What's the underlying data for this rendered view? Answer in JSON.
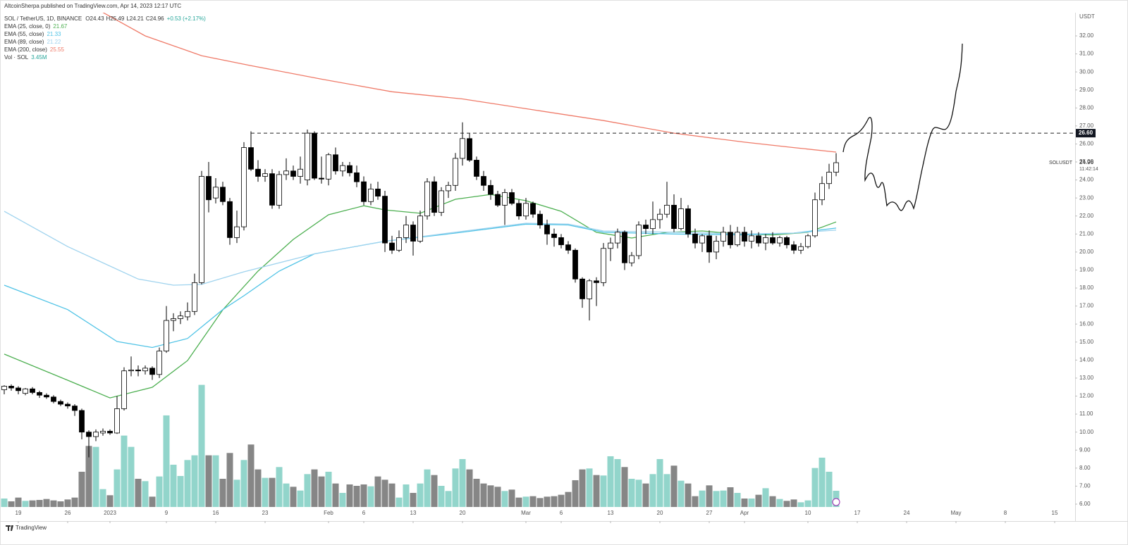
{
  "header": {
    "publisher": "AltcoinSherpa published on TradingView.com, Apr 14, 2023 12:17 UTC"
  },
  "chart_data": {
    "type": "candlestick",
    "symbol": "SOL / TetherUS, 1D, BINANCE",
    "ohlc_prefixes": [
      "O",
      "H",
      "L",
      "C"
    ],
    "change_label": "+0.53 (+2.17%)",
    "candles": [
      [
        12.35,
        12.6,
        12.1,
        12.55
      ],
      [
        12.55,
        12.65,
        12.3,
        12.45
      ],
      [
        12.45,
        12.55,
        12.1,
        12.3
      ],
      [
        12.15,
        12.45,
        12.05,
        12.4
      ],
      [
        12.4,
        12.5,
        12.1,
        12.2
      ],
      [
        12.2,
        12.3,
        11.9,
        12.05
      ],
      [
        12.05,
        12.15,
        11.85,
        11.95
      ],
      [
        11.95,
        12.05,
        11.6,
        11.7
      ],
      [
        11.7,
        11.8,
        11.45,
        11.55
      ],
      [
        11.55,
        11.65,
        11.3,
        11.45
      ],
      [
        11.45,
        11.55,
        10.9,
        11.2
      ],
      [
        11.2,
        11.3,
        9.6,
        10.0
      ],
      [
        10.0,
        10.1,
        8.6,
        9.75
      ],
      [
        9.75,
        10.15,
        9.5,
        10.0
      ],
      [
        9.95,
        10.2,
        9.8,
        10.05
      ],
      [
        10.05,
        10.15,
        9.85,
        9.95
      ],
      [
        9.95,
        12.0,
        9.9,
        11.3
      ],
      [
        11.3,
        13.6,
        11.2,
        13.4
      ],
      [
        13.4,
        14.2,
        13.1,
        13.45
      ],
      [
        13.45,
        13.7,
        13.1,
        13.4
      ],
      [
        13.4,
        13.7,
        13.2,
        13.55
      ],
      [
        13.55,
        13.65,
        12.9,
        13.2
      ],
      [
        13.2,
        14.7,
        13.0,
        14.5
      ],
      [
        14.5,
        17.0,
        14.4,
        16.2
      ],
      [
        16.2,
        16.6,
        15.6,
        16.3
      ],
      [
        16.3,
        16.7,
        16.0,
        16.45
      ],
      [
        16.4,
        17.2,
        16.2,
        16.7
      ],
      [
        16.7,
        18.8,
        16.5,
        18.3
      ],
      [
        18.3,
        24.5,
        18.2,
        24.2
      ],
      [
        24.2,
        25.0,
        22.2,
        22.9
      ],
      [
        23.0,
        24.1,
        22.7,
        23.6
      ],
      [
        23.6,
        23.9,
        22.6,
        22.8
      ],
      [
        22.8,
        23.0,
        20.4,
        20.8
      ],
      [
        20.8,
        22.3,
        20.5,
        21.4
      ],
      [
        21.4,
        26.1,
        21.2,
        25.8
      ],
      [
        25.8,
        26.7,
        24.5,
        24.6
      ],
      [
        24.6,
        25.1,
        23.9,
        24.2
      ],
      [
        24.2,
        24.6,
        23.9,
        24.35
      ],
      [
        24.35,
        24.6,
        22.4,
        22.6
      ],
      [
        22.6,
        24.5,
        22.4,
        24.3
      ],
      [
        24.3,
        25.2,
        24.0,
        24.5
      ],
      [
        24.5,
        24.8,
        24.0,
        24.2
      ],
      [
        24.2,
        25.3,
        23.8,
        24.6
      ],
      [
        24.0,
        26.8,
        23.7,
        26.6
      ],
      [
        26.6,
        26.7,
        24.0,
        24.1
      ],
      [
        24.1,
        25.3,
        23.8,
        24.05
      ],
      [
        24.05,
        25.5,
        23.7,
        25.4
      ],
      [
        25.4,
        25.8,
        24.3,
        24.5
      ],
      [
        24.5,
        25.0,
        24.2,
        24.8
      ],
      [
        24.8,
        25.0,
        24.2,
        24.4
      ],
      [
        24.4,
        24.8,
        23.6,
        23.9
      ],
      [
        23.9,
        24.2,
        22.6,
        22.8
      ],
      [
        22.8,
        23.8,
        22.6,
        23.5
      ],
      [
        23.5,
        23.9,
        22.9,
        23.1
      ],
      [
        23.1,
        23.4,
        20.0,
        20.5
      ],
      [
        20.5,
        20.9,
        19.9,
        20.1
      ],
      [
        20.1,
        21.2,
        20.0,
        20.8
      ],
      [
        20.8,
        22.0,
        20.5,
        21.5
      ],
      [
        21.5,
        21.7,
        19.8,
        20.6
      ],
      [
        20.6,
        22.3,
        20.5,
        22.0
      ],
      [
        22.0,
        24.1,
        21.8,
        23.9
      ],
      [
        23.9,
        24.2,
        22.0,
        22.2
      ],
      [
        22.2,
        23.6,
        22.0,
        23.4
      ],
      [
        23.4,
        23.9,
        23.0,
        23.7
      ],
      [
        23.7,
        25.5,
        23.4,
        25.2
      ],
      [
        25.2,
        27.2,
        24.8,
        26.3
      ],
      [
        26.3,
        26.6,
        25.0,
        25.1
      ],
      [
        25.1,
        25.3,
        24.0,
        24.2
      ],
      [
        24.2,
        24.5,
        23.4,
        23.7
      ],
      [
        23.7,
        24.0,
        22.9,
        23.2
      ],
      [
        23.2,
        23.4,
        22.5,
        22.6
      ],
      [
        22.6,
        23.5,
        21.5,
        23.3
      ],
      [
        23.3,
        23.5,
        22.6,
        22.7
      ],
      [
        22.7,
        22.9,
        21.8,
        22.0
      ],
      [
        22.0,
        23.0,
        21.8,
        22.7
      ],
      [
        22.7,
        22.8,
        21.9,
        22.1
      ],
      [
        22.1,
        22.3,
        21.3,
        21.5
      ],
      [
        21.5,
        21.8,
        20.4,
        21.0
      ],
      [
        21.0,
        21.3,
        20.3,
        20.8
      ],
      [
        20.8,
        21.0,
        20.2,
        20.4
      ],
      [
        20.4,
        20.6,
        19.9,
        20.1
      ],
      [
        20.1,
        20.2,
        18.3,
        18.5
      ],
      [
        18.5,
        18.6,
        16.9,
        17.4
      ],
      [
        17.4,
        18.5,
        16.2,
        18.4
      ],
      [
        18.4,
        18.6,
        17.0,
        18.3
      ],
      [
        18.3,
        20.5,
        18.1,
        20.2
      ],
      [
        20.2,
        20.8,
        19.5,
        20.5
      ],
      [
        20.5,
        21.3,
        20.2,
        21.1
      ],
      [
        21.1,
        21.2,
        19.0,
        19.4
      ],
      [
        19.4,
        20.0,
        19.2,
        19.8
      ],
      [
        19.8,
        21.7,
        19.6,
        21.5
      ],
      [
        21.5,
        21.8,
        21.0,
        21.3
      ],
      [
        21.3,
        22.8,
        21.0,
        21.8
      ],
      [
        21.8,
        22.4,
        21.3,
        22.1
      ],
      [
        22.1,
        23.9,
        21.9,
        22.6
      ],
      [
        22.6,
        23.2,
        21.1,
        21.3
      ],
      [
        21.3,
        23.0,
        21.2,
        22.4
      ],
      [
        22.4,
        22.6,
        20.8,
        21.0
      ],
      [
        21.0,
        21.3,
        20.2,
        20.5
      ],
      [
        20.5,
        21.0,
        20.0,
        20.9
      ],
      [
        20.9,
        21.2,
        19.4,
        20.0
      ],
      [
        20.0,
        20.9,
        19.6,
        20.6
      ],
      [
        20.6,
        21.4,
        20.3,
        21.1
      ],
      [
        21.1,
        21.5,
        20.2,
        20.4
      ],
      [
        20.4,
        21.4,
        20.3,
        21.1
      ],
      [
        21.1,
        21.4,
        20.3,
        20.6
      ],
      [
        20.6,
        21.2,
        20.2,
        20.9
      ],
      [
        20.9,
        21.1,
        20.3,
        20.5
      ],
      [
        20.5,
        21.0,
        20.1,
        20.8
      ],
      [
        20.8,
        21.1,
        20.4,
        20.5
      ],
      [
        20.5,
        20.9,
        20.3,
        20.8
      ],
      [
        20.8,
        20.9,
        20.2,
        20.4
      ],
      [
        20.4,
        20.6,
        19.9,
        20.1
      ],
      [
        20.1,
        20.5,
        19.9,
        20.3
      ],
      [
        20.3,
        21.0,
        20.2,
        20.9
      ],
      [
        20.9,
        23.3,
        20.8,
        22.9
      ],
      [
        22.9,
        24.2,
        22.6,
        23.8
      ],
      [
        23.8,
        24.9,
        23.5,
        24.43
      ],
      [
        24.43,
        25.49,
        24.21,
        24.96
      ]
    ],
    "up_color": "#ffffff",
    "down_color": "#000000",
    "volume": {
      "name": "Vol · SOL",
      "last_label": "3.45M",
      "up_color": "#92d5cb",
      "down_color": "#868686",
      "values": [
        1.8,
        1.2,
        2.0,
        1.3,
        1.4,
        1.5,
        1.7,
        1.4,
        1.2,
        1.6,
        2.0,
        7.5,
        13.0,
        12.8,
        3.8,
        2.5,
        8.0,
        15.2,
        12.8,
        6.0,
        5.5,
        2.2,
        6.5,
        19.5,
        9.0,
        6.6,
        10.0,
        11.0,
        26.0,
        11.0,
        11.0,
        6.0,
        11.5,
        5.8,
        10.0,
        13.3,
        8.0,
        6.2,
        6.2,
        8.5,
        5.0,
        4.3,
        3.5,
        7.0,
        8.0,
        6.5,
        7.5,
        5.0,
        3.0,
        4.8,
        4.5,
        4.8,
        4.4,
        6.5,
        5.8,
        5.0,
        2.0,
        4.8,
        3.0,
        5.0,
        8.0,
        6.8,
        4.5,
        3.4,
        8.2,
        10.2,
        8.0,
        6.0,
        5.0,
        4.6,
        4.3,
        3.4,
        3.7,
        2.0,
        2.2,
        2.3,
        1.9,
        2.2,
        2.3,
        2.6,
        3.2,
        5.7,
        8.0,
        8.2,
        6.8,
        6.7,
        10.8,
        10.2,
        8.5,
        6.0,
        5.8,
        5.0,
        7.0,
        10.2,
        7.0,
        8.8,
        5.6,
        5.0,
        2.3,
        3.5,
        4.6,
        3.4,
        3.5,
        4.2,
        3.0,
        1.8,
        1.8,
        2.6,
        4.0,
        2.3,
        1.7,
        1.3,
        1.6,
        1.0,
        1.4,
        8.3,
        10.5,
        7.5,
        3.45
      ]
    },
    "series": [
      {
        "name": "EMA (25, close, 0)",
        "color": "#4caf50",
        "x": [
          0,
          9,
          15,
          21,
          26,
          31,
          36,
          41,
          46,
          51,
          54,
          59,
          64,
          69,
          74,
          79,
          84,
          89,
          94,
          99,
          104,
          109,
          114,
          118
        ],
        "values": [
          14.33,
          12.88,
          11.9,
          12.49,
          13.97,
          16.79,
          18.94,
          20.7,
          22.07,
          22.57,
          22.34,
          22.15,
          22.93,
          23.2,
          22.85,
          22.26,
          21.09,
          20.78,
          21.09,
          21.17,
          21.0,
          20.95,
          21.09,
          21.67
        ]
      },
      {
        "name": "EMA (55, close)",
        "color": "#4fc3e6",
        "x": [
          0,
          9,
          16,
          21,
          26,
          31,
          34,
          39,
          44,
          54,
          64,
          74,
          80,
          85,
          95,
          105,
          112,
          118
        ],
        "values": [
          18.16,
          16.8,
          15.03,
          14.7,
          15.2,
          16.8,
          17.57,
          18.94,
          19.9,
          20.6,
          21.05,
          21.55,
          21.5,
          21.1,
          21.0,
          20.95,
          21.05,
          21.33
        ]
      },
      {
        "name": "EMA (89, close)",
        "color": "#9fd3ee",
        "x": [
          0,
          9,
          19,
          24,
          28,
          34,
          44,
          54,
          64,
          74,
          80,
          85,
          95,
          105,
          112,
          118
        ],
        "values": [
          22.26,
          20.3,
          18.5,
          18.16,
          18.2,
          18.9,
          19.9,
          20.6,
          21.1,
          21.6,
          21.55,
          21.17,
          21.1,
          21.0,
          21.05,
          21.22
        ]
      },
      {
        "name": "EMA (200, close)",
        "color": "#ef7a68",
        "x": [
          14,
          20,
          28,
          35,
          45,
          55,
          65,
          75,
          85,
          95,
          105,
          112,
          118
        ],
        "values": [
          33.3,
          32.0,
          30.9,
          30.35,
          29.6,
          28.9,
          28.5,
          27.9,
          27.3,
          26.6,
          26.1,
          25.8,
          25.55
        ]
      }
    ],
    "ylim": [
      5.06,
      33.29
    ],
    "yticks": [
      {
        "value": 6,
        "label": "6.00"
      },
      {
        "value": 7,
        "label": "7.00"
      },
      {
        "value": 8,
        "label": "8.00"
      },
      {
        "value": 9,
        "label": "9.00"
      },
      {
        "value": 10,
        "label": "10.00"
      },
      {
        "value": 11,
        "label": "11.00"
      },
      {
        "value": 12,
        "label": "12.00"
      },
      {
        "value": 13,
        "label": "13.00"
      },
      {
        "value": 14,
        "label": "14.00"
      },
      {
        "value": 15,
        "label": "15.00"
      },
      {
        "value": 16,
        "label": "16.00"
      },
      {
        "value": 17,
        "label": "17.00"
      },
      {
        "value": 18,
        "label": "18.00"
      },
      {
        "value": 19,
        "label": "19.00"
      },
      {
        "value": 20,
        "label": "20.00"
      },
      {
        "value": 21,
        "label": "21.00"
      },
      {
        "value": 22,
        "label": "22.00"
      },
      {
        "value": 23,
        "label": "23.00"
      },
      {
        "value": 24,
        "label": "24.00"
      },
      {
        "value": 25,
        "label": "25.00"
      },
      {
        "value": 26,
        "label": "26.00"
      },
      {
        "value": 27,
        "label": "27.00"
      },
      {
        "value": 28,
        "label": "28.00"
      },
      {
        "value": 29,
        "label": "29.00"
      },
      {
        "value": 30,
        "label": "30.00"
      },
      {
        "value": 31,
        "label": "31.00"
      },
      {
        "value": 32,
        "label": "32.00"
      }
    ],
    "axis_unit": "USDT",
    "xlim": [
      -0.6,
      151.9
    ],
    "xticks": [
      {
        "value": 2,
        "label": "19"
      },
      {
        "value": 9,
        "label": "26"
      },
      {
        "value": 15,
        "label": "2023"
      },
      {
        "value": 23,
        "label": "9"
      },
      {
        "value": 30,
        "label": "16"
      },
      {
        "value": 37,
        "label": "23"
      },
      {
        "value": 46,
        "label": "Feb"
      },
      {
        "value": 51,
        "label": "6"
      },
      {
        "value": 58,
        "label": "13"
      },
      {
        "value": 65,
        "label": "20"
      },
      {
        "value": 74,
        "label": "Mar"
      },
      {
        "value": 79,
        "label": "6"
      },
      {
        "value": 86,
        "label": "13"
      },
      {
        "value": 93,
        "label": "20"
      },
      {
        "value": 100,
        "label": "27"
      },
      {
        "value": 105,
        "label": "Apr"
      },
      {
        "value": 114,
        "label": "10"
      },
      {
        "value": 121,
        "label": "17"
      },
      {
        "value": 128,
        "label": "24"
      },
      {
        "value": 135,
        "label": "May"
      },
      {
        "value": 142,
        "label": "8"
      },
      {
        "value": 149,
        "label": "15"
      }
    ],
    "hline": {
      "value": 26.6,
      "label": "26.60",
      "x_start": 35
    },
    "last_price_symbol": "SOLUSDT",
    "countdown": "11:42:14"
  },
  "footer": {
    "brand": "TradingView"
  }
}
